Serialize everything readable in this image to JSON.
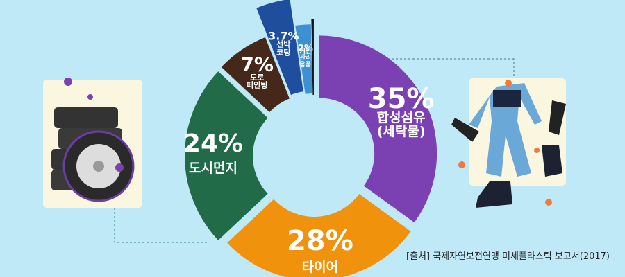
{
  "chart_data": {
    "type": "donut",
    "categories": [
      "합성섬유\n(세탁물)",
      "타이어",
      "도시먼지",
      "도로\n페인팅",
      "선박\n코팅",
      "개인\n관리\n용품",
      null
    ],
    "values": [
      35,
      28,
      24,
      7,
      3.7,
      2,
      0.3
    ],
    "value_labels": [
      "35%",
      "28%",
      "24%",
      "7%",
      "3.7%",
      "2%",
      null
    ],
    "colors": [
      "#7b40b2",
      "#f0920b",
      "#216b49",
      "#46281a",
      "#1f4e9e",
      "#3d90d2",
      "#111111"
    ],
    "source": "[출처] 국제자연보전연맹 미세플라스틱 보고서(2017)"
  }
}
